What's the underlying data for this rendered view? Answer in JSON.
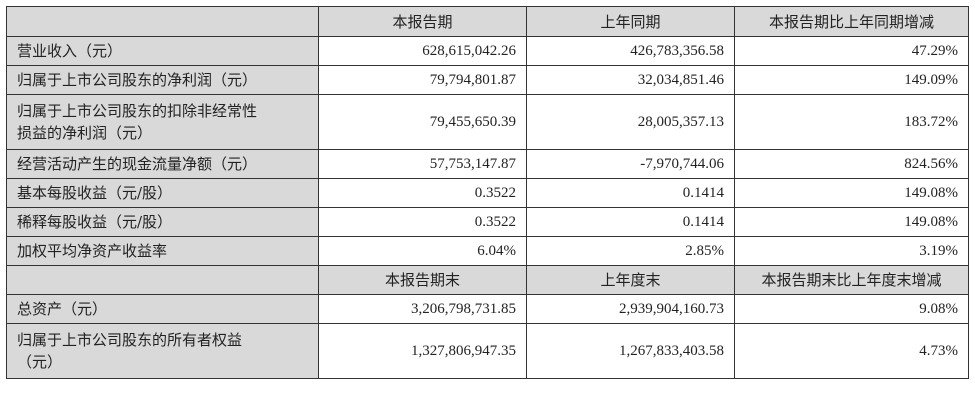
{
  "table": {
    "header1": [
      "",
      "本报告期",
      "上年同期",
      "本报告期比上年同期增减"
    ],
    "rows1": [
      {
        "label": "营业收入（元）",
        "current": "628,615,042.26",
        "prior": "426,783,356.58",
        "change": "47.29%"
      },
      {
        "label": "归属于上市公司股东的净利润（元）",
        "current": "79,794,801.87",
        "prior": "32,034,851.46",
        "change": "149.09%"
      },
      {
        "label": "归属于上市公司股东的扣除非经常性损益的净利润（元）",
        "label_line1": "归属于上市公司股东的扣除非经常性",
        "label_line2": "损益的净利润（元）",
        "current": "79,455,650.39",
        "prior": "28,005,357.13",
        "change": "183.72%"
      },
      {
        "label": "经营活动产生的现金流量净额（元）",
        "current": "57,753,147.87",
        "prior": "-7,970,744.06",
        "change": "824.56%"
      },
      {
        "label": "基本每股收益（元/股）",
        "current": "0.3522",
        "prior": "0.1414",
        "change": "149.08%"
      },
      {
        "label": "稀释每股收益（元/股）",
        "current": "0.3522",
        "prior": "0.1414",
        "change": "149.08%"
      },
      {
        "label": "加权平均净资产收益率",
        "current": "6.04%",
        "prior": "2.85%",
        "change": "3.19%"
      }
    ],
    "header2": [
      "",
      "本报告期末",
      "上年度末",
      "本报告期末比上年度末增减"
    ],
    "rows2": [
      {
        "label": "总资产（元）",
        "current": "3,206,798,731.85",
        "prior": "2,939,904,160.73",
        "change": "9.08%"
      },
      {
        "label": "归属于上市公司股东的所有者权益（元）",
        "label_line1": "归属于上市公司股东的所有者权益",
        "label_line2": "（元）",
        "current": "1,327,806,947.35",
        "prior": "1,267,833,403.58",
        "change": "4.73%"
      }
    ]
  },
  "colors": {
    "header_bg": "#d9d9d9",
    "border": "#333333",
    "cell_bg": "#ffffff"
  }
}
